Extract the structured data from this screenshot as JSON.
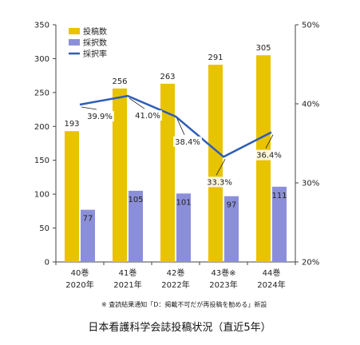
{
  "chart_data": {
    "type": "bar",
    "title": "日本看護科学会誌投稿状況（直近5年）",
    "note": "※ 査読結果通知「D：掲載不可だが再投稿を勧める」新設",
    "categories": [
      {
        "volume": "40巻",
        "year": "2020年"
      },
      {
        "volume": "41巻",
        "year": "2021年"
      },
      {
        "volume": "42巻",
        "year": "2022年"
      },
      {
        "volume": "43巻※",
        "year": "2023年"
      },
      {
        "volume": "44巻",
        "year": "2024年"
      }
    ],
    "series": [
      {
        "name": "投稿数",
        "kind": "bar",
        "axis": "left",
        "color": "#e8c300",
        "values": [
          193,
          256,
          263,
          291,
          305
        ]
      },
      {
        "name": "採択数",
        "kind": "bar",
        "axis": "left",
        "color": "#8b8fd9",
        "values": [
          77,
          105,
          101,
          97,
          111
        ]
      },
      {
        "name": "採択率",
        "kind": "line",
        "axis": "right",
        "color": "#2e5db8",
        "values": [
          39.9,
          41.0,
          38.4,
          33.3,
          36.4
        ],
        "labels": [
          "39.9%",
          "41.0%",
          "38.4%",
          "33.3%",
          "36.4%"
        ]
      }
    ],
    "ylim": [
      0,
      350
    ],
    "yticks": [
      "0",
      "50",
      "100",
      "150",
      "200",
      "250",
      "300",
      "350"
    ],
    "y2lim": [
      20,
      50
    ],
    "y2ticks": [
      "20%",
      "30%",
      "40%",
      "50%"
    ],
    "legend": "top-left",
    "grid": false
  }
}
